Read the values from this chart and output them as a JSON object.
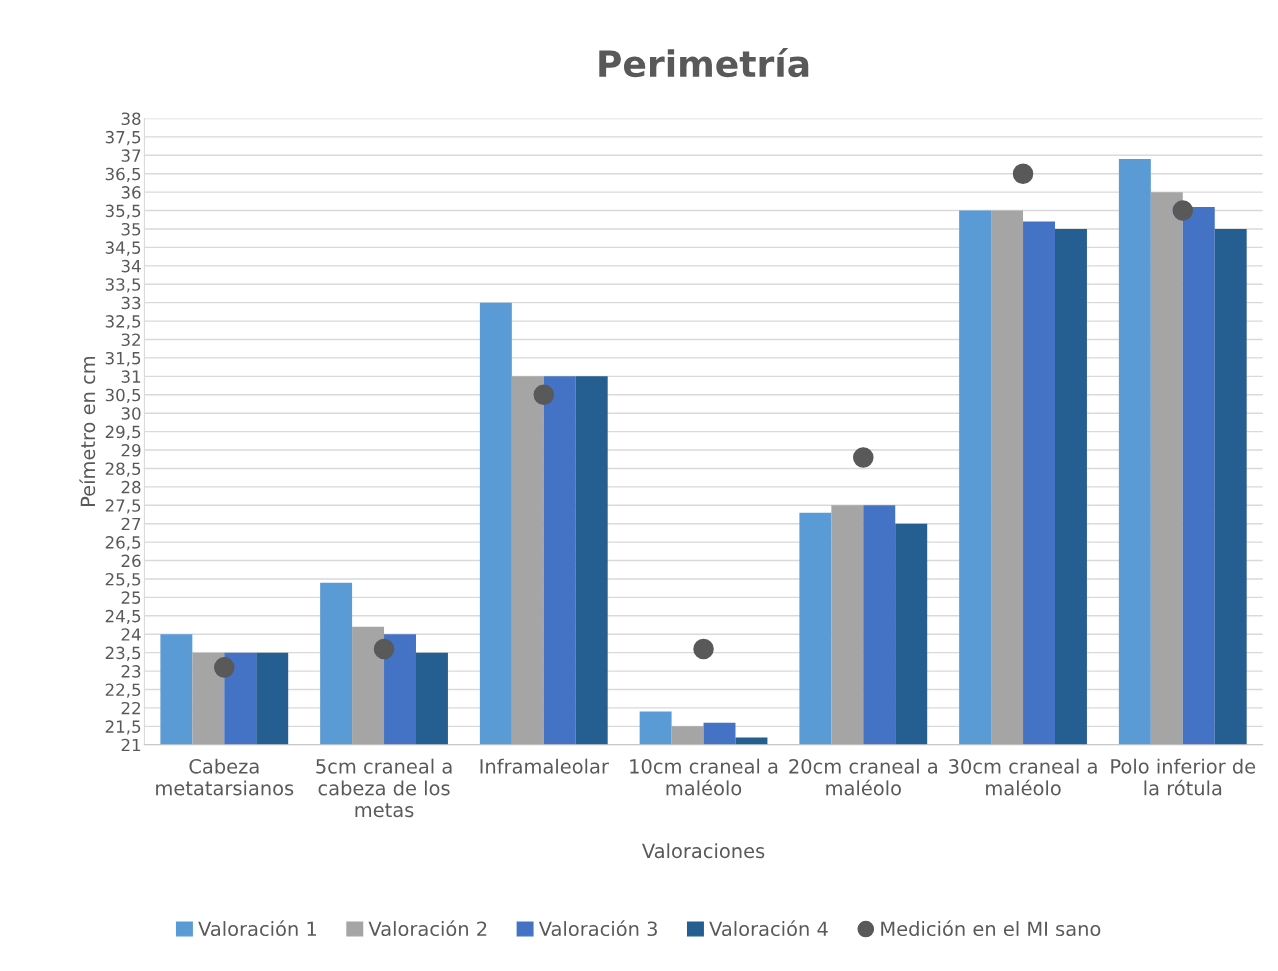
{
  "chart_data": {
    "type": "bar",
    "title": "Perimetría",
    "xlabel": "Valoraciones",
    "ylabel": "Peímetro en cm",
    "categories": [
      "Cabeza\nmetatarsianos",
      "5cm craneal a\ncabeza de los\nmetas",
      "Inframaleolar",
      "10cm craneal a\nmaléolo",
      "20cm craneal a\nmaléolo",
      "30cm craneal a\nmaléolo",
      "Polo inferior de\nla rótula"
    ],
    "series": [
      {
        "name": "Valoración 1",
        "color": "#5b9bd5",
        "values": [
          24,
          25.4,
          33,
          21.9,
          27.3,
          35.5,
          36.9
        ]
      },
      {
        "name": "Valoración 2",
        "color": "#a5a5a5",
        "values": [
          23.5,
          24.2,
          31,
          21.5,
          27.5,
          35.5,
          36
        ]
      },
      {
        "name": "Valoración 3",
        "color": "#4472c4",
        "values": [
          23.5,
          24,
          31,
          21.6,
          27.5,
          35.2,
          35.6
        ]
      },
      {
        "name": "Valoración 4",
        "color": "#255e91",
        "values": [
          23.5,
          23.5,
          31,
          21.2,
          27,
          35,
          35
        ]
      },
      {
        "name": "Medición en el MI sano",
        "color": "#595959",
        "type": "scatter",
        "marker": "circle",
        "values": [
          23.1,
          23.6,
          30.5,
          23.6,
          28.8,
          36.5,
          35.5
        ]
      }
    ],
    "ylim": [
      21,
      38
    ],
    "yticks": [
      21,
      {
        "value": 21.5,
        "label": "21,5"
      },
      22,
      {
        "value": 22.5,
        "label": "22,5"
      },
      23,
      {
        "value": 23.5,
        "label": "23,5"
      },
      24,
      {
        "value": 24.5,
        "label": "24,5"
      },
      25,
      {
        "value": 25.5,
        "label": "25,5"
      },
      26,
      {
        "value": 26.5,
        "label": "26,5"
      },
      27,
      {
        "value": 27.5,
        "label": "27,5"
      },
      28,
      {
        "value": 28.5,
        "label": "28,5"
      },
      29,
      {
        "value": 29.5,
        "label": "29,5"
      },
      30,
      {
        "value": 30.5,
        "label": "30,5"
      },
      31,
      {
        "value": 31.5,
        "label": "31,5"
      },
      32,
      {
        "value": 32.5,
        "label": "32,5"
      },
      33,
      {
        "value": 33.5,
        "label": "33,5"
      },
      34,
      {
        "value": 34.5,
        "label": "34,5"
      },
      35,
      {
        "value": 35.5,
        "label": "35,5"
      },
      36,
      {
        "value": 36.5,
        "label": "36,5"
      },
      37,
      {
        "value": 37.5,
        "label": "37,5"
      },
      38
    ],
    "grid": "y",
    "legend": "bottom"
  }
}
